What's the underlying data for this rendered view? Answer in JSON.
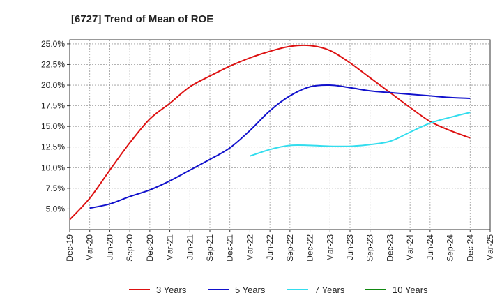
{
  "chart_data": {
    "type": "line",
    "title": "[6727]  Trend of Mean of ROE",
    "xlabel": "",
    "ylabel": "",
    "x_ticks": [
      "Dec-19",
      "Mar-20",
      "Jun-20",
      "Sep-20",
      "Dec-20",
      "Mar-21",
      "Jun-21",
      "Sep-21",
      "Dec-21",
      "Mar-22",
      "Jun-22",
      "Sep-22",
      "Dec-22",
      "Mar-23",
      "Jun-23",
      "Sep-23",
      "Dec-23",
      "Mar-24",
      "Jun-24",
      "Sep-24",
      "Dec-24",
      "Mar-25"
    ],
    "y_ticks": [
      "5.0%",
      "7.5%",
      "10.0%",
      "12.5%",
      "15.0%",
      "17.5%",
      "20.0%",
      "22.5%",
      "25.0%"
    ],
    "y_tick_values": [
      5.0,
      7.5,
      10.0,
      12.5,
      15.0,
      17.5,
      20.0,
      22.5,
      25.0
    ],
    "ylim": [
      2.5,
      25.5
    ],
    "grid": true,
    "legend_position": "bottom",
    "series": [
      {
        "name": "3 Years",
        "color": "#dd1111",
        "x": [
          "Dec-19",
          "Mar-20",
          "Jun-20",
          "Sep-20",
          "Dec-20",
          "Mar-21",
          "Jun-21",
          "Sep-21",
          "Dec-21",
          "Mar-22",
          "Jun-22",
          "Sep-22",
          "Dec-22",
          "Mar-23",
          "Jun-23",
          "Sep-23",
          "Dec-23",
          "Mar-24",
          "Jun-24",
          "Sep-24",
          "Dec-24"
        ],
        "values": [
          3.7,
          6.3,
          9.7,
          13.0,
          15.9,
          17.8,
          19.8,
          21.1,
          22.3,
          23.3,
          24.1,
          24.7,
          24.8,
          24.2,
          22.7,
          20.9,
          19.1,
          17.3,
          15.6,
          14.5,
          13.6
        ]
      },
      {
        "name": "5 Years",
        "color": "#1111cc",
        "x": [
          "Mar-20",
          "Jun-20",
          "Sep-20",
          "Dec-20",
          "Mar-21",
          "Jun-21",
          "Sep-21",
          "Dec-21",
          "Mar-22",
          "Jun-22",
          "Sep-22",
          "Dec-22",
          "Mar-23",
          "Jun-23",
          "Sep-23",
          "Dec-23",
          "Mar-24",
          "Jun-24",
          "Sep-24",
          "Dec-24"
        ],
        "values": [
          5.1,
          5.6,
          6.5,
          7.3,
          8.4,
          9.7,
          11.0,
          12.4,
          14.5,
          16.9,
          18.7,
          19.8,
          20.0,
          19.7,
          19.3,
          19.1,
          18.9,
          18.7,
          18.5,
          18.4
        ]
      },
      {
        "name": "7 Years",
        "color": "#33ddee",
        "x": [
          "Mar-22",
          "Jun-22",
          "Sep-22",
          "Dec-22",
          "Mar-23",
          "Jun-23",
          "Sep-23",
          "Dec-23",
          "Mar-24",
          "Jun-24",
          "Sep-24",
          "Dec-24"
        ],
        "values": [
          11.4,
          12.2,
          12.7,
          12.7,
          12.6,
          12.6,
          12.8,
          13.2,
          14.3,
          15.4,
          16.1,
          16.7
        ]
      },
      {
        "name": "10 Years",
        "color": "#118811",
        "x": [],
        "values": []
      }
    ]
  }
}
